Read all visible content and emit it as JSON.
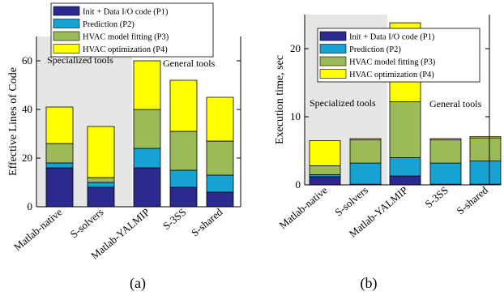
{
  "chart_data": [
    {
      "type": "bar",
      "stacked": true,
      "caption": "(a)",
      "ylabel": "Effective Lines of Code",
      "xlabel": "",
      "ylim": [
        0,
        70
      ],
      "yticks": [
        0,
        20,
        40,
        60
      ],
      "grid": false,
      "legend_position": "top",
      "regions": [
        {
          "label": "Specialized tools",
          "shaded": true
        },
        {
          "label": "General tools",
          "shaded": false
        }
      ],
      "categories": [
        "Matlab-native",
        "S-solvers",
        "Matlab-YALMIP",
        "S-3SS",
        "S-shared"
      ],
      "series": [
        {
          "name": "Init + Data I/O code (P1)",
          "color": "#2a2a8f",
          "values": [
            16,
            8,
            16,
            8,
            6
          ]
        },
        {
          "name": "Prediction (P2)",
          "color": "#16a3d4",
          "values": [
            2,
            2,
            8,
            7,
            7
          ]
        },
        {
          "name": "HVAC model fitting (P3)",
          "color": "#9bbb59",
          "values": [
            8,
            2,
            16,
            16,
            14
          ]
        },
        {
          "name": "HVAC optimization (P4)",
          "color": "#ffff00",
          "values": [
            15,
            21,
            20,
            21,
            18
          ]
        }
      ]
    },
    {
      "type": "bar",
      "stacked": true,
      "caption": "(b)",
      "ylabel": "Execution time, sec",
      "xlabel": "",
      "ylim": [
        0,
        25
      ],
      "yticks": [
        0,
        10,
        20
      ],
      "grid": false,
      "legend_position": "top",
      "regions": [
        {
          "label": "Specialized tools",
          "shaded": true
        },
        {
          "label": "General tools",
          "shaded": false
        }
      ],
      "categories": [
        "Matlab-native",
        "S-solvers",
        "Matlab-YALMIP",
        "S-3SS",
        "S-shared"
      ],
      "series": [
        {
          "name": "Init + Data I/O code (P1)",
          "color": "#2a2a8f",
          "values": [
            1.2,
            0.1,
            1.3,
            0.1,
            0.1
          ]
        },
        {
          "name": "Prediction (P2)",
          "color": "#16a3d4",
          "values": [
            0.3,
            3.1,
            2.7,
            3.1,
            3.4
          ]
        },
        {
          "name": "HVAC model fitting (P3)",
          "color": "#9bbb59",
          "values": [
            1.3,
            3.4,
            8.2,
            3.4,
            3.4
          ]
        },
        {
          "name": "HVAC optimization (P4)",
          "color": "#ffff00",
          "values": [
            3.7,
            0.2,
            11.6,
            0.2,
            0.2
          ]
        }
      ]
    }
  ]
}
